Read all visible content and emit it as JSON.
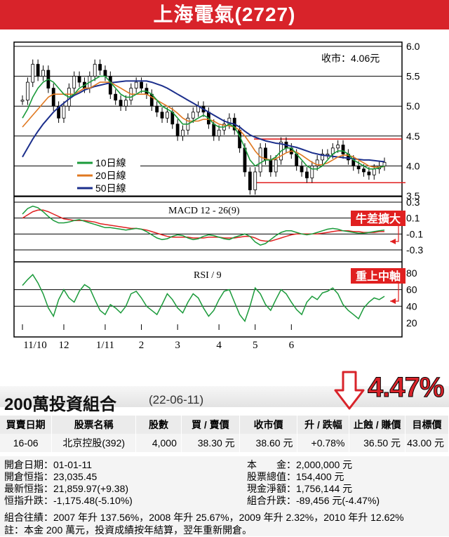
{
  "header": {
    "title": "上海電氣(2727)"
  },
  "chart_data": {
    "type": "line",
    "price_panel": {
      "y_ticks": [
        "6.0",
        "5.5",
        "5.0",
        "4.5",
        "4.0",
        "3.5"
      ],
      "ylim": [
        3.5,
        6.0
      ],
      "close_label": "收市：4.06元",
      "legend": [
        "10日線",
        "20日線",
        "50日線"
      ],
      "colors": {
        "candle": "#000000",
        "ma10": "#1a9a3a",
        "ma20": "#e07820",
        "ma50": "#1c2f8c",
        "resistance": "#e02020"
      },
      "resistance_levels": [
        4.45,
        3.72
      ],
      "close": [
        5.1,
        5.4,
        5.7,
        5.5,
        5.6,
        5.3,
        5.0,
        4.8,
        5.0,
        5.3,
        5.5,
        5.4,
        5.3,
        5.5,
        5.7,
        5.6,
        5.5,
        5.2,
        5.1,
        5.0,
        5.1,
        5.3,
        5.4,
        5.3,
        5.2,
        5.0,
        4.9,
        4.8,
        4.9,
        4.7,
        4.5,
        4.6,
        4.8,
        4.9,
        5.0,
        4.9,
        4.7,
        4.5,
        4.6,
        4.7,
        4.8,
        4.6,
        4.3,
        3.9,
        3.6,
        3.9,
        4.3,
        4.1,
        3.9,
        4.1,
        4.4,
        4.3,
        4.2,
        4.0,
        3.9,
        3.8,
        4.0,
        4.1,
        4.2,
        4.2,
        4.3,
        4.35,
        4.2,
        4.1,
        4.0,
        3.95,
        3.9,
        3.85,
        3.95,
        4.0,
        4.06
      ],
      "ma10": [
        4.8,
        4.95,
        5.15,
        5.3,
        5.4,
        5.45,
        5.4,
        5.3,
        5.2,
        5.15,
        5.2,
        5.3,
        5.35,
        5.4,
        5.45,
        5.5,
        5.5,
        5.4,
        5.3,
        5.2,
        5.15,
        5.15,
        5.2,
        5.25,
        5.25,
        5.2,
        5.1,
        5.0,
        4.95,
        4.9,
        4.8,
        4.7,
        4.7,
        4.75,
        4.8,
        4.85,
        4.8,
        4.7,
        4.65,
        4.65,
        4.7,
        4.65,
        4.5,
        4.3,
        4.1,
        4.0,
        4.05,
        4.1,
        4.1,
        4.15,
        4.25,
        4.3,
        4.3,
        4.2,
        4.1,
        4.0,
        3.95,
        3.95,
        4.0,
        4.1,
        4.2,
        4.25,
        4.25,
        4.2,
        4.1,
        4.05,
        4.0,
        3.95,
        3.95,
        3.97,
        4.0
      ],
      "ma20": [
        4.65,
        4.75,
        4.85,
        4.95,
        5.05,
        5.15,
        5.2,
        5.2,
        5.2,
        5.2,
        5.2,
        5.25,
        5.3,
        5.3,
        5.35,
        5.4,
        5.4,
        5.4,
        5.35,
        5.3,
        5.25,
        5.2,
        5.2,
        5.2,
        5.2,
        5.15,
        5.1,
        5.05,
        5.0,
        4.95,
        4.88,
        4.8,
        4.75,
        4.75,
        4.75,
        4.78,
        4.78,
        4.75,
        4.7,
        4.68,
        4.67,
        4.65,
        4.6,
        4.5,
        4.38,
        4.25,
        4.15,
        4.12,
        4.1,
        4.12,
        4.17,
        4.22,
        4.25,
        4.23,
        4.18,
        4.12,
        4.06,
        4.02,
        4.02,
        4.05,
        4.1,
        4.15,
        4.18,
        4.18,
        4.15,
        4.1,
        4.05,
        4.0,
        3.98,
        3.98,
        3.99
      ],
      "ma50": [
        4.15,
        4.3,
        4.45,
        4.58,
        4.7,
        4.8,
        4.9,
        4.98,
        5.05,
        5.12,
        5.18,
        5.22,
        5.27,
        5.3,
        5.33,
        5.35,
        5.37,
        5.39,
        5.4,
        5.41,
        5.42,
        5.42,
        5.42,
        5.42,
        5.42,
        5.4,
        5.37,
        5.34,
        5.3,
        5.25,
        5.2,
        5.15,
        5.1,
        5.05,
        5.0,
        4.95,
        4.9,
        4.85,
        4.8,
        4.75,
        4.72,
        4.7,
        4.65,
        4.58,
        4.52,
        4.48,
        4.45,
        4.42,
        4.4,
        4.38,
        4.37,
        4.35,
        4.33,
        4.31,
        4.28,
        4.25,
        4.22,
        4.2,
        4.18,
        4.17,
        4.16,
        4.15,
        4.14,
        4.13,
        4.12,
        4.11,
        4.1,
        4.1,
        4.09,
        4.08,
        4.07
      ]
    },
    "macd_panel": {
      "title": "MACD 12 - 26(9)",
      "y_ticks": [
        "0.3",
        "0.1",
        "-0.1",
        "-0.3"
      ],
      "ylim": [
        -0.35,
        0.35
      ],
      "annotation": "牛差擴大",
      "macd": [
        0.15,
        0.22,
        0.25,
        0.23,
        0.18,
        0.12,
        0.07,
        0.04,
        0.04,
        0.05,
        0.07,
        0.08,
        0.06,
        0.04,
        0.02,
        0.0,
        -0.02,
        -0.02,
        -0.03,
        -0.04,
        -0.05,
        -0.04,
        -0.03,
        -0.04,
        -0.07,
        -0.11,
        -0.15,
        -0.17,
        -0.16,
        -0.13,
        -0.11,
        -0.12,
        -0.15,
        -0.17,
        -0.16,
        -0.13,
        -0.11,
        -0.12,
        -0.14,
        -0.16,
        -0.17,
        -0.14,
        -0.12,
        -0.1,
        -0.13,
        -0.2,
        -0.24,
        -0.22,
        -0.17,
        -0.12,
        -0.08,
        -0.06,
        -0.06,
        -0.08,
        -0.1,
        -0.11,
        -0.1,
        -0.08,
        -0.06,
        -0.04,
        -0.03,
        -0.04,
        -0.06,
        -0.07,
        -0.08,
        -0.09,
        -0.09,
        -0.08,
        -0.07,
        -0.06,
        -0.05
      ],
      "signal": [
        0.1,
        0.14,
        0.18,
        0.2,
        0.2,
        0.18,
        0.15,
        0.12,
        0.09,
        0.08,
        0.07,
        0.07,
        0.07,
        0.06,
        0.05,
        0.03,
        0.02,
        0.01,
        0.0,
        -0.01,
        -0.02,
        -0.03,
        -0.03,
        -0.04,
        -0.05,
        -0.07,
        -0.09,
        -0.11,
        -0.13,
        -0.14,
        -0.14,
        -0.14,
        -0.14,
        -0.15,
        -0.15,
        -0.15,
        -0.14,
        -0.14,
        -0.14,
        -0.15,
        -0.15,
        -0.15,
        -0.14,
        -0.13,
        -0.13,
        -0.15,
        -0.18,
        -0.19,
        -0.19,
        -0.17,
        -0.15,
        -0.13,
        -0.11,
        -0.1,
        -0.1,
        -0.1,
        -0.1,
        -0.1,
        -0.09,
        -0.08,
        -0.07,
        -0.06,
        -0.06,
        -0.06,
        -0.07,
        -0.07,
        -0.08,
        -0.08,
        -0.08,
        -0.07,
        -0.07
      ]
    },
    "rsi_panel": {
      "title": "RSI / 9",
      "y_ticks": [
        "80",
        "60",
        "40",
        "20"
      ],
      "ylim": [
        17,
        92
      ],
      "annotation": "重上中軸",
      "values": [
        65,
        72,
        78,
        68,
        55,
        38,
        28,
        48,
        60,
        50,
        45,
        58,
        66,
        62,
        48,
        35,
        30,
        42,
        38,
        32,
        40,
        55,
        58,
        50,
        40,
        35,
        30,
        42,
        55,
        48,
        38,
        32,
        45,
        55,
        50,
        38,
        28,
        35,
        48,
        58,
        60,
        45,
        30,
        22,
        40,
        62,
        55,
        42,
        35,
        48,
        60,
        55,
        45,
        36,
        30,
        45,
        52,
        48,
        56,
        58,
        62,
        55,
        42,
        35,
        30,
        25,
        38,
        45,
        50,
        48,
        52
      ]
    },
    "x_labels": [
      "11/10",
      "12",
      "1/11",
      "2",
      "3",
      "4",
      "5",
      "6"
    ],
    "x_label_index": [
      0,
      8,
      16,
      23,
      30,
      38,
      45,
      52
    ]
  },
  "portfolio": {
    "title": "200萬投資組合",
    "date": "(22-06-11)",
    "change": "4.47%",
    "columns": [
      "買賣日期",
      "股票名稱",
      "股數",
      "買 / 賣價",
      "收市價",
      "升 / 跌幅",
      "止蝕 / 賺價",
      "目標價"
    ],
    "rows": [
      [
        "16-06",
        "北京控股(392)",
        "4,000",
        "38.30 元",
        "38.60 元",
        "+0.78%",
        "36.50 元",
        "43.00 元"
      ]
    ],
    "summary_left": [
      {
        "k": "開倉日期：",
        "v": "01-01-11"
      },
      {
        "k": "開倉恒指：",
        "v": "23,035.45"
      },
      {
        "k": "最新恒指：",
        "v": "21,859.97(+9.38)"
      },
      {
        "k": "恒指升跌：",
        "v": "-1,175.48(-5.10%)"
      }
    ],
    "summary_right": [
      {
        "k": "本　　金：",
        "v": "2,000,000 元"
      },
      {
        "k": "股票總值：",
        "v": "154,400 元"
      },
      {
        "k": "現金淨額：",
        "v": "1,756,144 元"
      },
      {
        "k": "組合升跌：",
        "v": "-89,456 元(-4.47%)"
      }
    ],
    "history": "組合往績：2007 年升 137.56%，2008 年升 25.67%，2009 年升 2.32%，2010 年升 12.62%",
    "note": "註：本金 200 萬元，投資成績按年結算，翌年重新開倉。"
  }
}
